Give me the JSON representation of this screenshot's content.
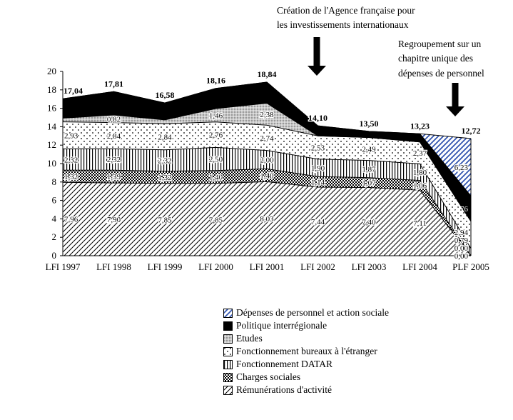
{
  "annotations": {
    "afii": "Création de l'Agence française pour\nles investissements internationaux",
    "regroupement": "Regroupement sur un\nchapitre unique des\ndépenses de personnel"
  },
  "colors": {
    "personnel_blue": "#3355b0",
    "axis_black": "#000000",
    "etudes_gray": "#c9c9c9"
  },
  "chart_data": {
    "type": "area",
    "stacked": true,
    "title": "",
    "xlabel": "",
    "ylabel": "",
    "ylim": [
      0,
      20
    ],
    "ytick_step": 2,
    "grid": false,
    "legend_position": "bottom-center",
    "value_format": "fr-comma",
    "categories": [
      "LFI 1997",
      "LFI 1998",
      "LFI 1999",
      "LFI 2000",
      "LFI 2001",
      "LFI 2002",
      "LFI 2003",
      "LFI 2004",
      "PLF 2005"
    ],
    "series": [
      {
        "key": "remunerations-activite",
        "name": "Rémunérations d'activité",
        "pattern": "diagonal-hatch",
        "label_last_zero": true,
        "values": [
          7.96,
          7.9,
          7.85,
          7.85,
          8.03,
          7.44,
          7.4,
          7.11,
          0.0
        ]
      },
      {
        "key": "charges-sociales",
        "name": "Charges sociales",
        "pattern": "checkerboard",
        "label_last_zero": true,
        "values": [
          1.32,
          1.39,
          1.32,
          1.4,
          1.4,
          1.14,
          1.07,
          1.06,
          0.0
        ]
      },
      {
        "key": "fonctionnement-datar",
        "name": "Fonctionnement DATAR",
        "pattern": "vertical-lines",
        "values": [
          2.32,
          2.32,
          2.32,
          2.5,
          2.0,
          1.9,
          1.87,
          1.8,
          0.79
        ]
      },
      {
        "key": "bureaux-etranger",
        "name": "Fonctionnement bureaux à l'étranger",
        "pattern": "sparse-dots",
        "values": [
          2.93,
          2.84,
          2.84,
          2.76,
          2.74,
          2.53,
          2.49,
          2.37,
          2.94
        ]
      },
      {
        "key": "etudes",
        "name": "Etudes",
        "pattern": "gray-dots",
        "values": [
          0.4,
          0.82,
          0.41,
          1.46,
          2.38,
          0.0,
          0.0,
          0.0,
          0.0
        ]
      },
      {
        "key": "politique-interregionale",
        "name": "Politique interrégionale",
        "pattern": "solid-black",
        "label_only_last": true,
        "label_color": "#ffffff",
        "values": [
          2.11,
          2.54,
          1.84,
          2.19,
          2.29,
          1.09,
          0.67,
          0.89,
          2.76
        ]
      },
      {
        "key": "depenses-personnel",
        "name": "Dépenses de personnel et action sociale",
        "pattern": "blue-diagonal-hatch",
        "values": [
          0.0,
          0.0,
          0.0,
          0.0,
          0.0,
          0.0,
          0.0,
          0.0,
          6.23
        ]
      }
    ],
    "totals": [
      17.04,
      17.81,
      16.58,
      18.16,
      18.84,
      14.1,
      13.5,
      13.23,
      12.72
    ]
  }
}
